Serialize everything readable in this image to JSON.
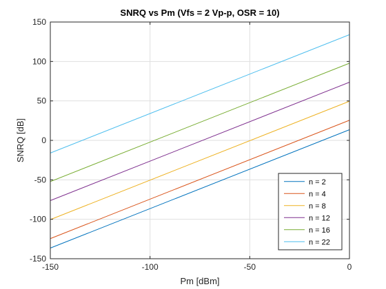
{
  "chart_data": {
    "type": "line",
    "title": "SNRQ vs Pm (Vfs = 2 Vp-p, OSR = 10)",
    "xlabel": "Pm [dBm]",
    "ylabel": "SNRQ [dB]",
    "xlim": [
      -150,
      0
    ],
    "ylim": [
      -150,
      150
    ],
    "xticks": [
      -150,
      -100,
      -50,
      0
    ],
    "yticks": [
      -150,
      -100,
      -50,
      0,
      50,
      100,
      150
    ],
    "grid": true,
    "legend_position": "bottom-right",
    "x": [
      -150,
      0
    ],
    "series": [
      {
        "name": "n = 2",
        "color": "#0072BD",
        "values": [
          -136.5,
          13.5
        ]
      },
      {
        "name": "n = 4",
        "color": "#D95319",
        "values": [
          -124.5,
          25.5
        ]
      },
      {
        "name": "n = 8",
        "color": "#EDB120",
        "values": [
          -100.4,
          49.6
        ]
      },
      {
        "name": "n = 12",
        "color": "#7E2F8E",
        "values": [
          -76.3,
          73.7
        ]
      },
      {
        "name": "n = 16",
        "color": "#77AC30",
        "values": [
          -52.2,
          97.8
        ]
      },
      {
        "name": "n = 22",
        "color": "#4DBEEE",
        "values": [
          -16.0,
          134.0
        ]
      }
    ]
  }
}
